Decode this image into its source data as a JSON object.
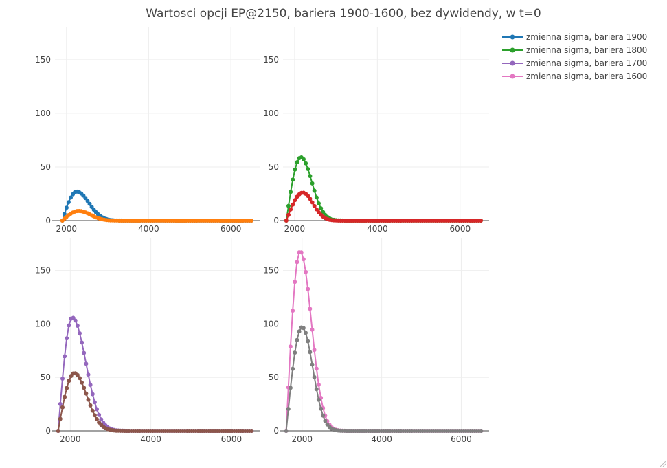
{
  "title": "Wartosci opcji EP@2150, bariera 1900-1600, bez dywidendy, w t=0",
  "chart_data": {
    "type": "line",
    "layout": "2x2 grid",
    "legend_position": "top-right",
    "grid": true,
    "legend": [
      {
        "name": "zmienna sigma, bariera 1900",
        "color": "#1f77b4"
      },
      {
        "name": "zmienna sigma, bariera 1800",
        "color": "#2ca02c"
      },
      {
        "name": "zmienna sigma, bariera 1700",
        "color": "#9467bd"
      },
      {
        "name": "zmienna sigma, bariera 1600",
        "color": "#e377c2"
      }
    ],
    "subplots": [
      {
        "xlim": [
          1720,
          6700
        ],
        "ylim": [
          0,
          180
        ],
        "xticks": [
          2000,
          4000,
          6000
        ],
        "yticks": [
          0,
          50,
          100,
          150
        ],
        "series": [
          {
            "name": "zmienna sigma, bariera 1900",
            "color": "#1f77b4",
            "x_start": 1900,
            "x_end": 6500,
            "peak_x": 2250,
            "peak_y": 27,
            "tail_scale": 400
          },
          {
            "color": "#ff7f0e",
            "x_start": 1900,
            "x_end": 6500,
            "peak_x": 2300,
            "peak_y": 9,
            "tail_scale": 380
          }
        ]
      },
      {
        "xlim": [
          1720,
          6700
        ],
        "ylim": [
          0,
          180
        ],
        "xticks": [
          2000,
          4000,
          6000
        ],
        "yticks": [
          0,
          50,
          100,
          150
        ],
        "series": [
          {
            "name": "zmienna sigma, bariera 1800",
            "color": "#2ca02c",
            "x_start": 1800,
            "x_end": 6500,
            "peak_x": 2150,
            "peak_y": 59,
            "tail_scale": 360
          },
          {
            "color": "#d62728",
            "x_start": 1800,
            "x_end": 6500,
            "peak_x": 2200,
            "peak_y": 26,
            "tail_scale": 330
          }
        ]
      },
      {
        "xlim": [
          1620,
          6700
        ],
        "ylim": [
          0,
          180
        ],
        "xticks": [
          2000,
          4000,
          6000
        ],
        "yticks": [
          0,
          50,
          100,
          150
        ],
        "series": [
          {
            "name": "zmienna sigma, bariera 1700",
            "color": "#9467bd",
            "x_start": 1700,
            "x_end": 6500,
            "peak_x": 2050,
            "peak_y": 106,
            "tail_scale": 450
          },
          {
            "color": "#8c564b",
            "x_start": 1700,
            "x_end": 6500,
            "peak_x": 2100,
            "peak_y": 54,
            "tail_scale": 420
          }
        ]
      },
      {
        "xlim": [
          1520,
          6700
        ],
        "ylim": [
          0,
          180
        ],
        "xticks": [
          2000,
          4000,
          6000
        ],
        "yticks": [
          0,
          50,
          100,
          150
        ],
        "series": [
          {
            "name": "zmienna sigma, bariera 1600",
            "color": "#e377c2",
            "x_start": 1600,
            "x_end": 6500,
            "peak_x": 1950,
            "peak_y": 168,
            "tail_scale": 380
          },
          {
            "color": "#7f7f7f",
            "x_start": 1600,
            "x_end": 6500,
            "peak_x": 2000,
            "peak_y": 97,
            "tail_scale": 360
          }
        ]
      }
    ]
  }
}
